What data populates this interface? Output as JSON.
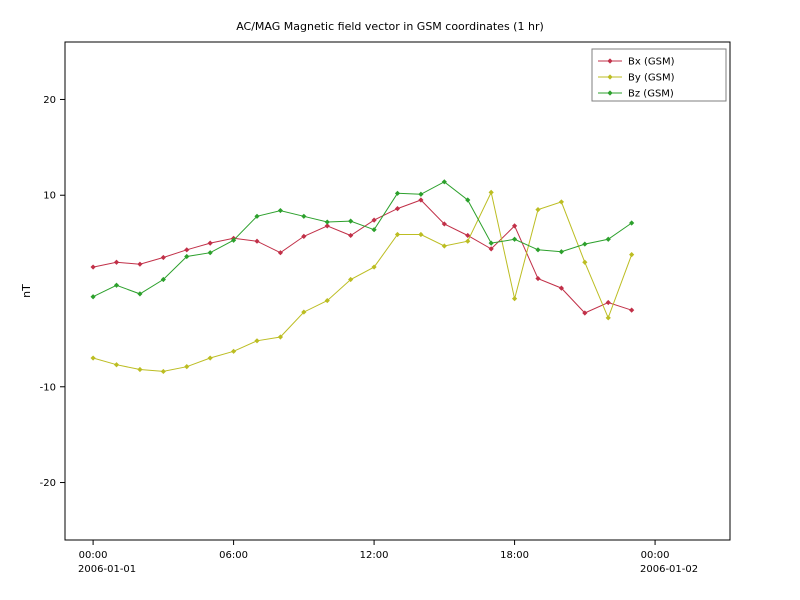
{
  "chart_data": {
    "type": "line",
    "title": "AC/MAG  Magnetic field vector in GSM coordinates (1 hr)",
    "xlabel": "",
    "ylabel": "nT",
    "grid": false,
    "legend_position": "top-right",
    "background_color": "#ffffff",
    "axis_color": "#000000",
    "ylim": [
      -26,
      26
    ],
    "xlim_hours": [
      -1.2,
      27.2
    ],
    "x_hours": [
      0,
      1,
      2,
      3,
      4,
      5,
      6,
      7,
      8,
      9,
      10,
      11,
      12,
      13,
      14,
      15,
      16,
      17,
      18,
      19,
      20,
      21,
      22,
      23
    ],
    "series": [
      {
        "name": "Bx (GSM)",
        "color": "#c13048",
        "values": [
          2.5,
          3.0,
          2.8,
          3.5,
          4.3,
          5.0,
          5.5,
          5.2,
          4.0,
          5.7,
          6.8,
          5.8,
          7.4,
          8.6,
          9.5,
          7.0,
          5.8,
          4.4,
          6.8,
          1.3,
          0.3,
          -2.3,
          -1.2,
          -2.0
        ]
      },
      {
        "name": "By (GSM)",
        "color": "#bcbd22",
        "values": [
          -7.0,
          -7.7,
          -8.2,
          -8.4,
          -7.9,
          -7.0,
          -6.3,
          -5.2,
          -4.8,
          -2.2,
          -1.0,
          1.2,
          2.5,
          5.9,
          5.9,
          4.7,
          5.2,
          10.3,
          -0.8,
          8.5,
          9.3,
          3.0,
          -2.8,
          3.8
        ]
      },
      {
        "name": "Bz (GSM)",
        "color": "#2ca02c",
        "values": [
          -0.6,
          0.6,
          -0.3,
          1.2,
          3.6,
          4.0,
          5.3,
          7.8,
          8.4,
          7.8,
          7.2,
          7.3,
          6.4,
          10.2,
          10.1,
          11.4,
          9.5,
          5.0,
          5.4,
          4.3,
          4.1,
          4.9,
          5.4,
          7.1
        ]
      }
    ],
    "yticks": [
      {
        "value": 20,
        "label": "20"
      },
      {
        "value": 10,
        "label": "10"
      },
      {
        "value": -10,
        "label": "-10"
      },
      {
        "value": -20,
        "label": "-20"
      }
    ],
    "xticks": [
      {
        "hour": 0,
        "label": "00:00",
        "date": "2006-01-01"
      },
      {
        "hour": 6,
        "label": "06:00",
        "date": ""
      },
      {
        "hour": 12,
        "label": "12:00",
        "date": ""
      },
      {
        "hour": 18,
        "label": "18:00",
        "date": ""
      },
      {
        "hour": 24,
        "label": "00:00",
        "date": "2006-01-02"
      }
    ]
  }
}
